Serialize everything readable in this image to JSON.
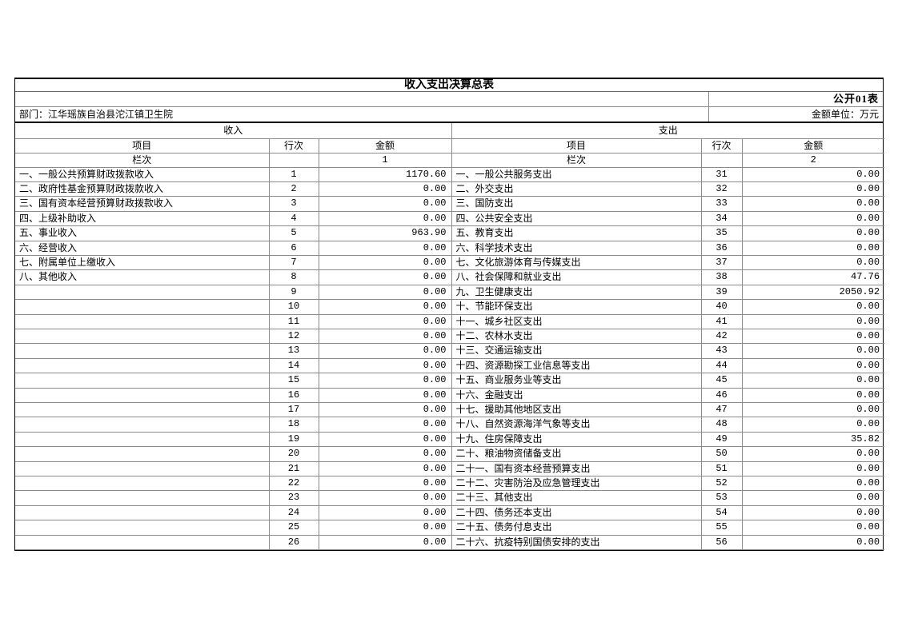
{
  "colors": {
    "background": "#ffffff",
    "text": "#000000",
    "grid_line": "#8c8c8c",
    "dark_border": "#000000"
  },
  "header": {
    "title": "收入支出决算总表",
    "table_code": "公开01表",
    "department": "部门：江华瑶族自治县沱江镇卫生院",
    "unit": "金额单位：万元"
  },
  "columns": {
    "income_group": "收入",
    "expense_group": "支出",
    "item": "项目",
    "line_no": "行次",
    "amount": "金额",
    "index_label": "栏次",
    "income_index": "1",
    "expense_index": "2"
  },
  "rows": [
    {
      "income_item": "一、一般公共预算财政拨款收入",
      "income_line": "1",
      "income_amount": "1170.60",
      "expense_item": "一、一般公共服务支出",
      "expense_line": "31",
      "expense_amount": "0.00"
    },
    {
      "income_item": "二、政府性基金预算财政拨款收入",
      "income_line": "2",
      "income_amount": "0.00",
      "expense_item": "二、外交支出",
      "expense_line": "32",
      "expense_amount": "0.00"
    },
    {
      "income_item": "三、国有资本经营预算财政拨款收入",
      "income_line": "3",
      "income_amount": "0.00",
      "expense_item": "三、国防支出",
      "expense_line": "33",
      "expense_amount": "0.00"
    },
    {
      "income_item": "四、上级补助收入",
      "income_line": "4",
      "income_amount": "0.00",
      "expense_item": "四、公共安全支出",
      "expense_line": "34",
      "expense_amount": "0.00"
    },
    {
      "income_item": "五、事业收入",
      "income_line": "5",
      "income_amount": "963.90",
      "expense_item": "五、教育支出",
      "expense_line": "35",
      "expense_amount": "0.00"
    },
    {
      "income_item": "六、经营收入",
      "income_line": "6",
      "income_amount": "0.00",
      "expense_item": "六、科学技术支出",
      "expense_line": "36",
      "expense_amount": "0.00"
    },
    {
      "income_item": "七、附属单位上缴收入",
      "income_line": "7",
      "income_amount": "0.00",
      "expense_item": "七、文化旅游体育与传媒支出",
      "expense_line": "37",
      "expense_amount": "0.00"
    },
    {
      "income_item": "八、其他收入",
      "income_line": "8",
      "income_amount": "0.00",
      "expense_item": "八、社会保障和就业支出",
      "expense_line": "38",
      "expense_amount": "47.76"
    },
    {
      "income_item": "",
      "income_line": "9",
      "income_amount": "0.00",
      "expense_item": "九、卫生健康支出",
      "expense_line": "39",
      "expense_amount": "2050.92"
    },
    {
      "income_item": "",
      "income_line": "10",
      "income_amount": "0.00",
      "expense_item": "十、节能环保支出",
      "expense_line": "40",
      "expense_amount": "0.00"
    },
    {
      "income_item": "",
      "income_line": "11",
      "income_amount": "0.00",
      "expense_item": "十一、城乡社区支出",
      "expense_line": "41",
      "expense_amount": "0.00"
    },
    {
      "income_item": "",
      "income_line": "12",
      "income_amount": "0.00",
      "expense_item": "十二、农林水支出",
      "expense_line": "42",
      "expense_amount": "0.00"
    },
    {
      "income_item": "",
      "income_line": "13",
      "income_amount": "0.00",
      "expense_item": "十三、交通运输支出",
      "expense_line": "43",
      "expense_amount": "0.00"
    },
    {
      "income_item": "",
      "income_line": "14",
      "income_amount": "0.00",
      "expense_item": "十四、资源勘探工业信息等支出",
      "expense_line": "44",
      "expense_amount": "0.00"
    },
    {
      "income_item": "",
      "income_line": "15",
      "income_amount": "0.00",
      "expense_item": "十五、商业服务业等支出",
      "expense_line": "45",
      "expense_amount": "0.00"
    },
    {
      "income_item": "",
      "income_line": "16",
      "income_amount": "0.00",
      "expense_item": "十六、金融支出",
      "expense_line": "46",
      "expense_amount": "0.00"
    },
    {
      "income_item": "",
      "income_line": "17",
      "income_amount": "0.00",
      "expense_item": "十七、援助其他地区支出",
      "expense_line": "47",
      "expense_amount": "0.00"
    },
    {
      "income_item": "",
      "income_line": "18",
      "income_amount": "0.00",
      "expense_item": "十八、自然资源海洋气象等支出",
      "expense_line": "48",
      "expense_amount": "0.00"
    },
    {
      "income_item": "",
      "income_line": "19",
      "income_amount": "0.00",
      "expense_item": "十九、住房保障支出",
      "expense_line": "49",
      "expense_amount": "35.82"
    },
    {
      "income_item": "",
      "income_line": "20",
      "income_amount": "0.00",
      "expense_item": "二十、粮油物资储备支出",
      "expense_line": "50",
      "expense_amount": "0.00"
    },
    {
      "income_item": "",
      "income_line": "21",
      "income_amount": "0.00",
      "expense_item": "二十一、国有资本经营预算支出",
      "expense_line": "51",
      "expense_amount": "0.00"
    },
    {
      "income_item": "",
      "income_line": "22",
      "income_amount": "0.00",
      "expense_item": "二十二、灾害防治及应急管理支出",
      "expense_line": "52",
      "expense_amount": "0.00"
    },
    {
      "income_item": "",
      "income_line": "23",
      "income_amount": "0.00",
      "expense_item": "二十三、其他支出",
      "expense_line": "53",
      "expense_amount": "0.00"
    },
    {
      "income_item": "",
      "income_line": "24",
      "income_amount": "0.00",
      "expense_item": "二十四、债务还本支出",
      "expense_line": "54",
      "expense_amount": "0.00"
    },
    {
      "income_item": "",
      "income_line": "25",
      "income_amount": "0.00",
      "expense_item": "二十五、债务付息支出",
      "expense_line": "55",
      "expense_amount": "0.00"
    },
    {
      "income_item": "",
      "income_line": "26",
      "income_amount": "0.00",
      "expense_item": "二十六、抗疫特别国债安排的支出",
      "expense_line": "56",
      "expense_amount": "0.00"
    }
  ]
}
